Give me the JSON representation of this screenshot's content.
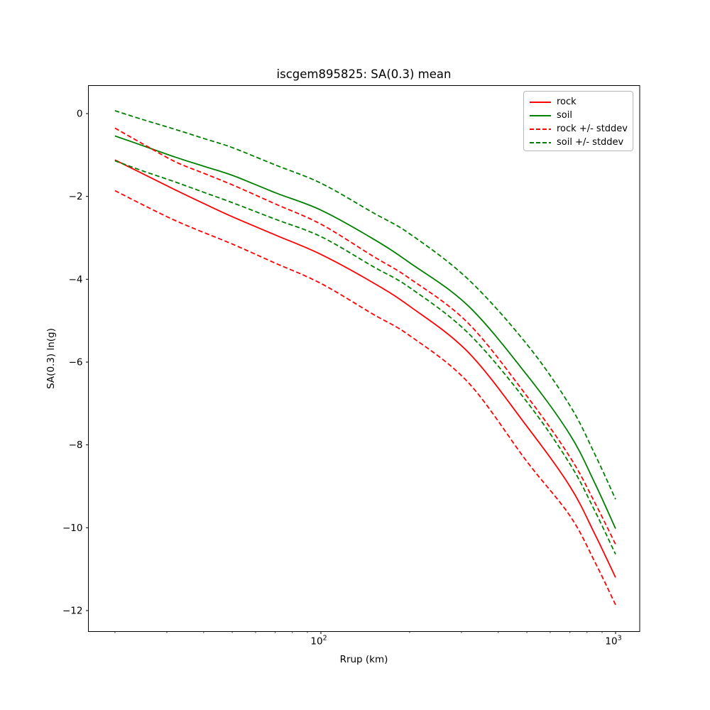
{
  "chart_data": {
    "type": "line",
    "title": "iscgem895825: SA(0.3) mean",
    "xlabel": "Rrup (km)",
    "ylabel": "SA(0.3) ln(g)",
    "x_scale": "log",
    "xlim": [
      16.4,
      1220
    ],
    "ylim": [
      -12.48,
      0.67
    ],
    "grid": false,
    "yticks": [
      0,
      -2,
      -4,
      -6,
      -8,
      -10,
      -12
    ],
    "xticks_major": [
      100,
      1000
    ],
    "xticks_minor": [
      20,
      30,
      40,
      50,
      60,
      70,
      80,
      90,
      200,
      300,
      400,
      500,
      600,
      700,
      800,
      900
    ],
    "x": [
      20,
      25,
      32,
      40,
      50,
      70,
      100,
      150,
      200,
      316,
      500,
      700,
      850,
      1000
    ],
    "series": [
      {
        "name": "rock",
        "color": "#ff0000",
        "style": "solid",
        "values": [
          -1.12,
          -1.46,
          -1.84,
          -2.17,
          -2.49,
          -2.93,
          -3.4,
          -4.08,
          -4.65,
          -5.76,
          -7.55,
          -9.0,
          -10.15,
          -11.2
        ]
      },
      {
        "name": "soil",
        "color": "#008000",
        "style": "solid",
        "values": [
          -0.54,
          -0.78,
          -1.05,
          -1.27,
          -1.49,
          -1.91,
          -2.33,
          -3.02,
          -3.6,
          -4.64,
          -6.31,
          -7.75,
          -8.92,
          -10.02
        ]
      },
      {
        "name": "rock + stddev",
        "color": "#ff0000",
        "style": "dashed",
        "values": [
          -0.35,
          -0.74,
          -1.16,
          -1.44,
          -1.72,
          -2.18,
          -2.67,
          -3.44,
          -3.98,
          -5.06,
          -6.82,
          -8.29,
          -9.39,
          -10.4
        ]
      },
      {
        "name": "rock - stddev",
        "color": "#ff0000",
        "style": "dashed",
        "values": [
          -1.86,
          -2.21,
          -2.58,
          -2.87,
          -3.15,
          -3.61,
          -4.1,
          -4.84,
          -5.36,
          -6.49,
          -8.4,
          -9.71,
          -10.82,
          -11.86
        ]
      },
      {
        "name": "soil + stddev",
        "color": "#008000",
        "style": "dashed",
        "values": [
          0.07,
          -0.15,
          -0.38,
          -0.6,
          -0.82,
          -1.24,
          -1.68,
          -2.39,
          -2.9,
          -4.0,
          -5.57,
          -7.05,
          -8.22,
          -9.31
        ]
      },
      {
        "name": "soil - stddev",
        "color": "#008000",
        "style": "dashed",
        "values": [
          -1.14,
          -1.39,
          -1.65,
          -1.9,
          -2.15,
          -2.55,
          -2.97,
          -3.69,
          -4.2,
          -5.3,
          -6.96,
          -8.46,
          -9.59,
          -10.64
        ]
      }
    ],
    "legend": {
      "position": "upper right",
      "entries": [
        {
          "label": "rock",
          "color": "#ff0000",
          "style": "solid"
        },
        {
          "label": "soil",
          "color": "#008000",
          "style": "solid"
        },
        {
          "label": "rock +/- stddev",
          "color": "#ff0000",
          "style": "dashed"
        },
        {
          "label": "soil +/- stddev",
          "color": "#008000",
          "style": "dashed"
        }
      ]
    }
  }
}
